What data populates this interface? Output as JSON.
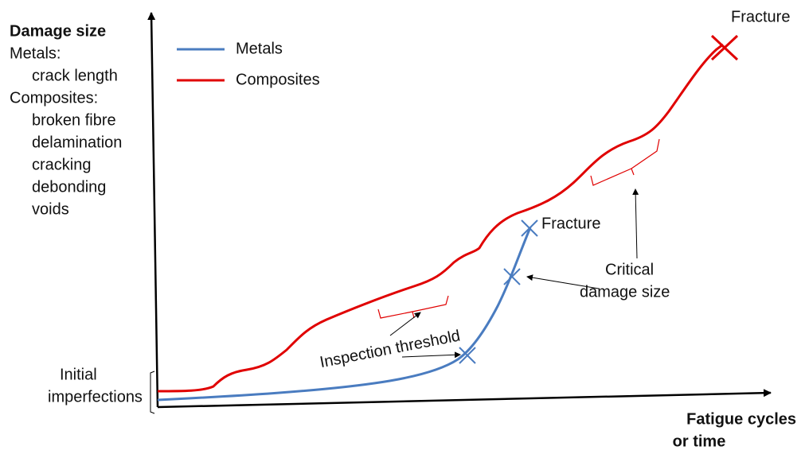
{
  "y_axis": {
    "title": "Damage size",
    "lines": [
      "Metals:",
      "crack length",
      "Composites:",
      "broken fibre",
      "delamination",
      "cracking",
      "debonding",
      "voids"
    ]
  },
  "legend": [
    {
      "name": "Metals",
      "color": "#4a7cc0"
    },
    {
      "name": "Composites",
      "color": "#e00000"
    }
  ],
  "annotations": {
    "fracture_composites": "Fracture",
    "fracture_metals": "Fracture",
    "critical": [
      "Critical",
      "damage size"
    ],
    "inspection": "Inspection threshold",
    "initial": [
      "Initial",
      "imperfections"
    ]
  },
  "x_axis": {
    "title": [
      "Fatigue cycles",
      "or time"
    ]
  }
}
